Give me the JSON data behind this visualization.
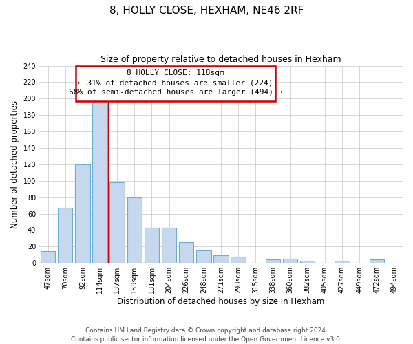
{
  "title": "8, HOLLY CLOSE, HEXHAM, NE46 2RF",
  "subtitle": "Size of property relative to detached houses in Hexham",
  "xlabel": "Distribution of detached houses by size in Hexham",
  "ylabel": "Number of detached properties",
  "categories": [
    "47sqm",
    "70sqm",
    "92sqm",
    "114sqm",
    "137sqm",
    "159sqm",
    "181sqm",
    "204sqm",
    "226sqm",
    "248sqm",
    "271sqm",
    "293sqm",
    "315sqm",
    "338sqm",
    "360sqm",
    "382sqm",
    "405sqm",
    "427sqm",
    "449sqm",
    "472sqm",
    "494sqm"
  ],
  "values": [
    14,
    67,
    120,
    195,
    98,
    80,
    43,
    43,
    25,
    15,
    9,
    8,
    0,
    4,
    5,
    3,
    0,
    3,
    0,
    4,
    0
  ],
  "bar_color": "#c5d8ee",
  "bar_edge_color": "#6aaed6",
  "vline_x_index": 3,
  "vline_color": "#cc0000",
  "annotation_line1": "8 HOLLY CLOSE: 118sqm",
  "annotation_line2": "← 31% of detached houses are smaller (224)",
  "annotation_line3": "68% of semi-detached houses are larger (494) →",
  "ylim": [
    0,
    240
  ],
  "yticks": [
    0,
    20,
    40,
    60,
    80,
    100,
    120,
    140,
    160,
    180,
    200,
    220,
    240
  ],
  "grid_color": "#d0d0d0",
  "background_color": "#ffffff",
  "footer_line1": "Contains HM Land Registry data © Crown copyright and database right 2024.",
  "footer_line2": "Contains public sector information licensed under the Open Government Licence v3.0.",
  "title_fontsize": 11,
  "subtitle_fontsize": 9,
  "xlabel_fontsize": 8.5,
  "ylabel_fontsize": 8.5,
  "tick_fontsize": 7,
  "annotation_fontsize": 8,
  "footer_fontsize": 6.5
}
